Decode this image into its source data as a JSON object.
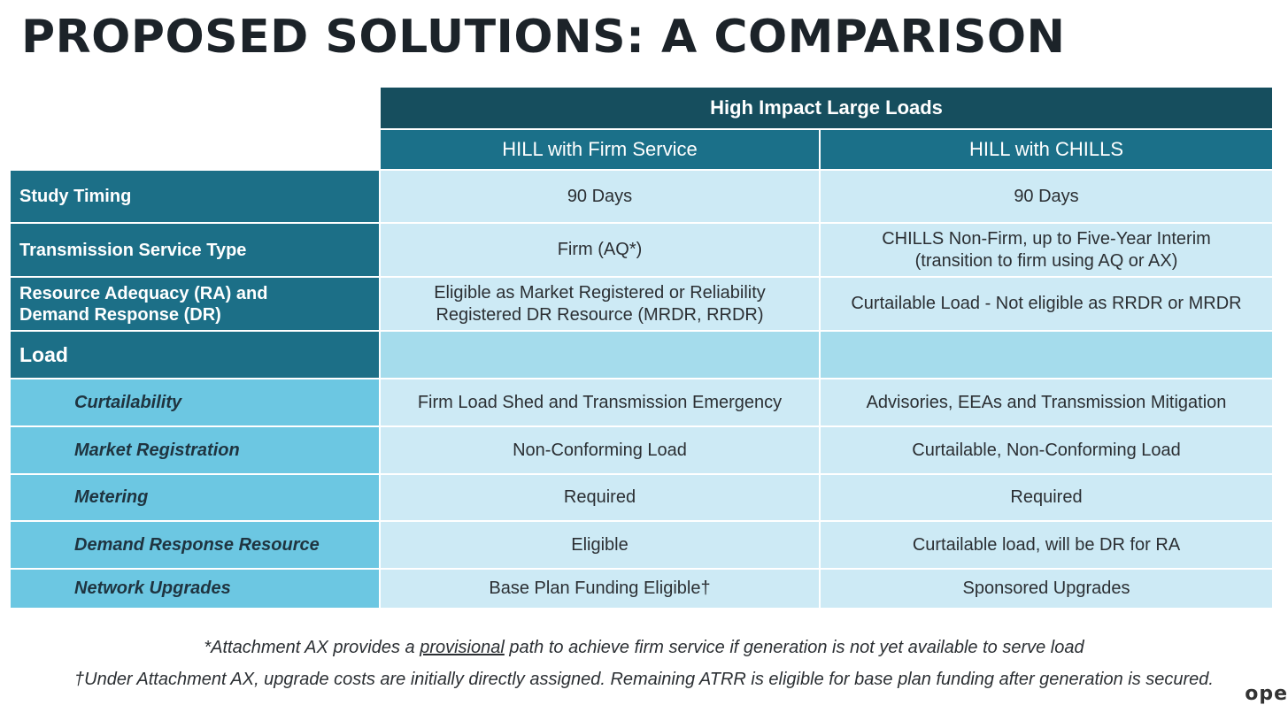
{
  "title": "PROPOSED SOLUTIONS: A COMPARISON",
  "table": {
    "group_header": "High Impact Large Loads",
    "columns": [
      "HILL with Firm Service",
      "HILL with CHILLS"
    ],
    "rows": [
      {
        "label": "Study Timing",
        "firm": "90 Days",
        "chills": "90 Days"
      },
      {
        "label": "Transmission Service Type",
        "firm": "Firm (AQ*)",
        "chills_line1": "CHILLS Non-Firm, up to Five-Year Interim",
        "chills_line2": "(transition to firm using AQ or AX)"
      },
      {
        "label_line1": "Resource Adequacy (RA) and",
        "label_line2": "Demand Response (DR)",
        "firm_line1": "Eligible as Market Registered or Reliability",
        "firm_line2": "Registered DR Resource (MRDR, RRDR)",
        "chills": "Curtailable Load - Not eligible as RRDR or MRDR"
      }
    ],
    "load_label": "Load",
    "load_rows": [
      {
        "label": "Curtailability",
        "firm": "Firm Load Shed and Transmission Emergency",
        "chills": "Advisories, EEAs and Transmission Mitigation"
      },
      {
        "label": "Market Registration",
        "firm": "Non-Conforming Load",
        "chills": "Curtailable, Non-Conforming Load"
      },
      {
        "label": "Metering",
        "firm": "Required",
        "chills": "Required"
      },
      {
        "label": "Demand Response Resource",
        "firm": "Eligible",
        "chills": "Curtailable load, will be DR for RA"
      },
      {
        "label": "Network Upgrades",
        "firm": "Base Plan Funding Eligible†",
        "chills": "Sponsored Upgrades"
      }
    ]
  },
  "footnotes": {
    "f1_pre": "*Attachment AX provides a ",
    "f1_link": "provisional",
    "f1_post": " path to achieve firm service if generation is not yet available to serve load",
    "f2": "†Under Attachment AX, upgrade costs are initially directly assigned. Remaining ATRR is eligible for base plan funding after generation is secured."
  },
  "logo_text": "ope"
}
